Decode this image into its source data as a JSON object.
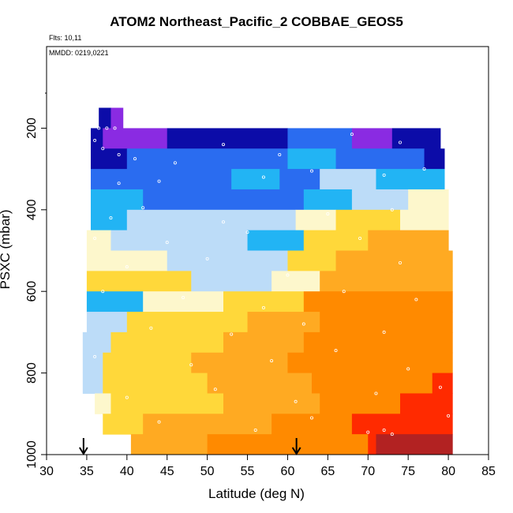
{
  "title": "ATOM2 Northeast_Pacific_2 COBBAE_GEOS5",
  "flights_note": "Flts: 10,11",
  "date_note": "MMDD: 0219,0221",
  "chart_data": {
    "type": "heatmap",
    "title": "ATOM2 Northeast_Pacific_2 COBBAE_GEOS5",
    "xlabel": "Latitude (deg N)",
    "ylabel": "PSXC (mbar)",
    "xlim": [
      30,
      85
    ],
    "ylim": [
      1000,
      0
    ],
    "xticks": [
      30,
      35,
      40,
      45,
      50,
      55,
      60,
      65,
      70,
      75,
      80,
      85
    ],
    "yticks": [
      200,
      400,
      600,
      800,
      1000
    ],
    "grid": false,
    "legend": "none",
    "colors": {
      "dark_blue": "#0c0ca8",
      "blue": "#2a6cf0",
      "sky": "#22b4f4",
      "light_blue": "#bcdcf8",
      "cream": "#fdf7cc",
      "yellow": "#ffd83a",
      "orange": "#ffaa22",
      "dark_orange": "#ff8a00",
      "red": "#ff2a00",
      "dark_red": "#b22222",
      "purple": "#8a2be2"
    },
    "rows": [
      {
        "p": [
          150,
          200
        ],
        "lat": [
          36.5,
          39.5
        ],
        "cells": [
          [
            36.5,
            38.0,
            "dark_blue"
          ],
          [
            38.0,
            39.5,
            "purple"
          ]
        ]
      },
      {
        "p": [
          200,
          250
        ],
        "lat": [
          35.5,
          79
        ],
        "cells": [
          [
            35.5,
            37,
            "dark_blue"
          ],
          [
            37,
            45,
            "purple"
          ],
          [
            45,
            60,
            "dark_blue"
          ],
          [
            60,
            68,
            "blue"
          ],
          [
            68,
            73,
            "purple"
          ],
          [
            73,
            79,
            "dark_blue"
          ]
        ]
      },
      {
        "p": [
          250,
          300
        ],
        "lat": [
          35.5,
          79.5
        ],
        "cells": [
          [
            35.5,
            40,
            "dark_blue"
          ],
          [
            40,
            60,
            "blue"
          ],
          [
            60,
            66,
            "sky"
          ],
          [
            66,
            77,
            "blue"
          ],
          [
            77,
            79.5,
            "dark_blue"
          ]
        ]
      },
      {
        "p": [
          300,
          350
        ],
        "lat": [
          35.5,
          79.5
        ],
        "cells": [
          [
            35.5,
            53,
            "blue"
          ],
          [
            53,
            59,
            "sky"
          ],
          [
            59,
            64,
            "blue"
          ],
          [
            64,
            71,
            "light_blue"
          ],
          [
            71,
            79.5,
            "sky"
          ]
        ]
      },
      {
        "p": [
          350,
          400
        ],
        "lat": [
          35.5,
          80
        ],
        "cells": [
          [
            35.5,
            42,
            "sky"
          ],
          [
            42,
            62,
            "blue"
          ],
          [
            62,
            68,
            "sky"
          ],
          [
            68,
            75,
            "light_blue"
          ],
          [
            75,
            80,
            "cream"
          ]
        ]
      },
      {
        "p": [
          400,
          450
        ],
        "lat": [
          35.5,
          80
        ],
        "cells": [
          [
            35.5,
            40,
            "sky"
          ],
          [
            40,
            61,
            "light_blue"
          ],
          [
            61,
            66,
            "cream"
          ],
          [
            66,
            74,
            "yellow"
          ],
          [
            74,
            80,
            "cream"
          ]
        ]
      },
      {
        "p": [
          450,
          500
        ],
        "lat": [
          35,
          80
        ],
        "cells": [
          [
            35,
            38,
            "cream"
          ],
          [
            38,
            55,
            "light_blue"
          ],
          [
            55,
            62,
            "sky"
          ],
          [
            62,
            70,
            "yellow"
          ],
          [
            70,
            80,
            "orange"
          ]
        ]
      },
      {
        "p": [
          500,
          550
        ],
        "lat": [
          35,
          80.5
        ],
        "cells": [
          [
            35,
            45,
            "cream"
          ],
          [
            45,
            60,
            "light_blue"
          ],
          [
            60,
            66,
            "yellow"
          ],
          [
            66,
            80.5,
            "orange"
          ]
        ]
      },
      {
        "p": [
          550,
          600
        ],
        "lat": [
          35,
          80.5
        ],
        "cells": [
          [
            35,
            48,
            "yellow"
          ],
          [
            48,
            58,
            "light_blue"
          ],
          [
            58,
            64,
            "cream"
          ],
          [
            64,
            80.5,
            "orange"
          ]
        ]
      },
      {
        "p": [
          600,
          650
        ],
        "lat": [
          35,
          80.5
        ],
        "cells": [
          [
            35,
            42,
            "sky"
          ],
          [
            42,
            52,
            "cream"
          ],
          [
            52,
            62,
            "yellow"
          ],
          [
            62,
            80.5,
            "dark_orange"
          ]
        ]
      },
      {
        "p": [
          650,
          700
        ],
        "lat": [
          35,
          80.5
        ],
        "cells": [
          [
            35,
            40,
            "light_blue"
          ],
          [
            40,
            55,
            "yellow"
          ],
          [
            55,
            64,
            "orange"
          ],
          [
            64,
            80.5,
            "dark_orange"
          ]
        ]
      },
      {
        "p": [
          700,
          750
        ],
        "lat": [
          34.5,
          80.5
        ],
        "cells": [
          [
            34.5,
            38,
            "light_blue"
          ],
          [
            38,
            52,
            "yellow"
          ],
          [
            52,
            62,
            "orange"
          ],
          [
            62,
            80.5,
            "dark_orange"
          ]
        ]
      },
      {
        "p": [
          750,
          800
        ],
        "lat": [
          34.5,
          80.5
        ],
        "cells": [
          [
            34.5,
            37,
            "light_blue"
          ],
          [
            37,
            48,
            "yellow"
          ],
          [
            48,
            60,
            "orange"
          ],
          [
            60,
            80.5,
            "dark_orange"
          ]
        ]
      },
      {
        "p": [
          800,
          850
        ],
        "lat": [
          34.5,
          80.5
        ],
        "cells": [
          [
            34.5,
            37,
            "light_blue"
          ],
          [
            37,
            50,
            "yellow"
          ],
          [
            50,
            63,
            "orange"
          ],
          [
            63,
            78,
            "dark_orange"
          ],
          [
            78,
            80.5,
            "red"
          ]
        ]
      },
      {
        "p": [
          850,
          900
        ],
        "lat": [
          36,
          80.5
        ],
        "cells": [
          [
            36,
            38,
            "cream"
          ],
          [
            38,
            52,
            "yellow"
          ],
          [
            52,
            64,
            "orange"
          ],
          [
            64,
            74,
            "dark_orange"
          ],
          [
            74,
            80.5,
            "red"
          ]
        ]
      },
      {
        "p": [
          900,
          950
        ],
        "lat": [
          37,
          80.5
        ],
        "cells": [
          [
            37,
            42,
            "yellow"
          ],
          [
            42,
            58,
            "orange"
          ],
          [
            58,
            68,
            "dark_orange"
          ],
          [
            68,
            80.5,
            "red"
          ]
        ]
      },
      {
        "p": [
          950,
          1000
        ],
        "lat": [
          40.5,
          80.5
        ],
        "cells": [
          [
            40.5,
            50,
            "orange"
          ],
          [
            50,
            70,
            "dark_orange"
          ],
          [
            70,
            71,
            "red"
          ],
          [
            71,
            80.5,
            "dark_red"
          ]
        ]
      }
    ],
    "markers": [
      {
        "lat": 36.5,
        "p": 200
      },
      {
        "lat": 37.5,
        "p": 200
      },
      {
        "lat": 38.5,
        "p": 200
      },
      {
        "lat": 36,
        "p": 230
      },
      {
        "lat": 37,
        "p": 250
      },
      {
        "lat": 39,
        "p": 265
      },
      {
        "lat": 41,
        "p": 275
      },
      {
        "lat": 46,
        "p": 285
      },
      {
        "lat": 52,
        "p": 240
      },
      {
        "lat": 59,
        "p": 265
      },
      {
        "lat": 68,
        "p": 215
      },
      {
        "lat": 74,
        "p": 235
      },
      {
        "lat": 39,
        "p": 335
      },
      {
        "lat": 44,
        "p": 330
      },
      {
        "lat": 57,
        "p": 320
      },
      {
        "lat": 63,
        "p": 305
      },
      {
        "lat": 72,
        "p": 315
      },
      {
        "lat": 77,
        "p": 300
      },
      {
        "lat": 38,
        "p": 420
      },
      {
        "lat": 42,
        "p": 395
      },
      {
        "lat": 52,
        "p": 430
      },
      {
        "lat": 65,
        "p": 410
      },
      {
        "lat": 73,
        "p": 400
      },
      {
        "lat": 36,
        "p": 470
      },
      {
        "lat": 45,
        "p": 480
      },
      {
        "lat": 55,
        "p": 455
      },
      {
        "lat": 69,
        "p": 470
      },
      {
        "lat": 40,
        "p": 540
      },
      {
        "lat": 50,
        "p": 520
      },
      {
        "lat": 60,
        "p": 560
      },
      {
        "lat": 74,
        "p": 530
      },
      {
        "lat": 37,
        "p": 600
      },
      {
        "lat": 47,
        "p": 615
      },
      {
        "lat": 57,
        "p": 640
      },
      {
        "lat": 67,
        "p": 600
      },
      {
        "lat": 76,
        "p": 620
      },
      {
        "lat": 43,
        "p": 690
      },
      {
        "lat": 53,
        "p": 705
      },
      {
        "lat": 62,
        "p": 680
      },
      {
        "lat": 72,
        "p": 700
      },
      {
        "lat": 36,
        "p": 760
      },
      {
        "lat": 48,
        "p": 780
      },
      {
        "lat": 58,
        "p": 770
      },
      {
        "lat": 66,
        "p": 745
      },
      {
        "lat": 75,
        "p": 790
      },
      {
        "lat": 40,
        "p": 860
      },
      {
        "lat": 51,
        "p": 840
      },
      {
        "lat": 61,
        "p": 870
      },
      {
        "lat": 71,
        "p": 850
      },
      {
        "lat": 79,
        "p": 835
      },
      {
        "lat": 44,
        "p": 920
      },
      {
        "lat": 56,
        "p": 940
      },
      {
        "lat": 63,
        "p": 910
      },
      {
        "lat": 70,
        "p": 945
      },
      {
        "lat": 72,
        "p": 940
      },
      {
        "lat": 73,
        "p": 950
      },
      {
        "lat": 80,
        "p": 905
      }
    ],
    "arrows": [
      34.6,
      61.1
    ]
  }
}
